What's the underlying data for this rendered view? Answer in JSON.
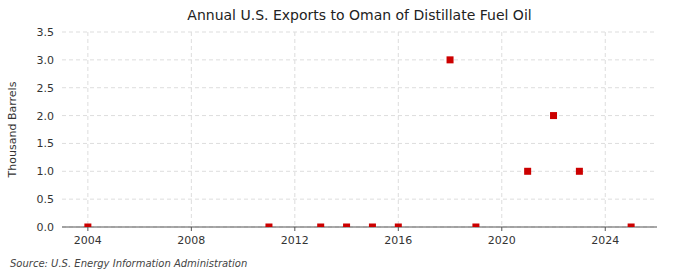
{
  "chart_data": {
    "type": "scatter",
    "title": "Annual U.S. Exports to Oman of Distillate Fuel Oil",
    "y_label": "Thousand Barrels",
    "annotation": "Source: U.S. Energy Information Administration",
    "x": [
      2004,
      2011,
      2013,
      2014,
      2015,
      2016,
      2018,
      2019,
      2021,
      2022,
      2023,
      2025
    ],
    "values": [
      0,
      0,
      0,
      0,
      0,
      0,
      3.0,
      0,
      1.0,
      2.0,
      1.0,
      0
    ],
    "color": "#cc0000",
    "marker": "square",
    "xlim": [
      2003,
      2026
    ],
    "ylim": [
      0.0,
      3.5
    ],
    "xticks": [
      2004,
      2008,
      2012,
      2016,
      2020,
      2024
    ],
    "yticks": [
      {
        "value": 0.0,
        "label": "0.0"
      },
      {
        "value": 0.5,
        "label": "0.5"
      },
      {
        "value": 1.0,
        "label": "1.0"
      },
      {
        "value": 1.5,
        "label": "1.5"
      },
      {
        "value": 2.0,
        "label": "2.0"
      },
      {
        "value": 2.5,
        "label": "2.5"
      },
      {
        "value": 3.0,
        "label": "3.0"
      },
      {
        "value": 3.5,
        "label": "3.5"
      }
    ],
    "grid": true
  }
}
